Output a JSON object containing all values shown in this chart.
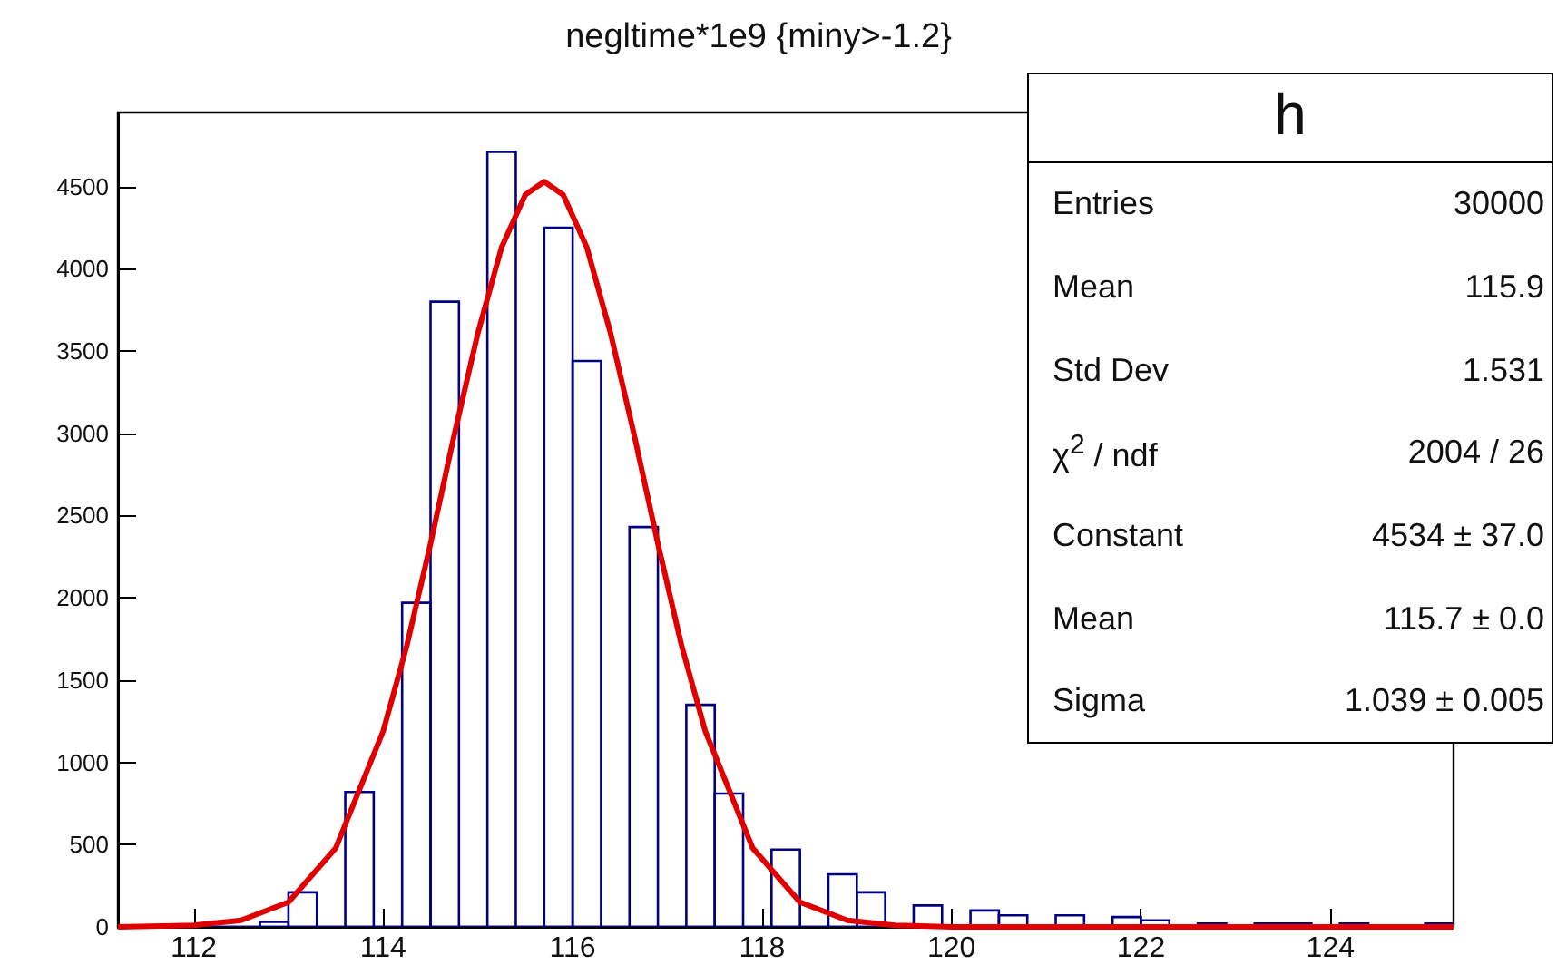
{
  "chart_data": {
    "type": "histogram",
    "title": "negltime*1e9 {miny>-1.2}",
    "bins": [
      111.2,
      111.5,
      111.8,
      112.1,
      112.4,
      112.7,
      113.0,
      113.3,
      113.6,
      113.9,
      114.2,
      114.5,
      114.8,
      115.1,
      115.4,
      115.7,
      116.0,
      116.3,
      116.6,
      116.9,
      117.2,
      117.5,
      117.8,
      118.1,
      118.4,
      118.7,
      119.0,
      119.3,
      119.6,
      119.9,
      120.2,
      120.5,
      120.8,
      121.1,
      121.4,
      121.7,
      122.0,
      122.3,
      122.6,
      122.9,
      123.2,
      123.5,
      123.8,
      124.1,
      124.4,
      124.7,
      125.0,
      125.3
    ],
    "series": [
      {
        "color": "#000080",
        "values": [
          0,
          0,
          0,
          0,
          0,
          30,
          210,
          0,
          820,
          0,
          1970,
          3800,
          0,
          4710,
          0,
          4250,
          3440,
          0,
          2430,
          0,
          1350,
          810,
          0,
          470,
          0,
          320,
          210,
          0,
          130,
          0,
          100,
          70,
          0,
          70,
          0,
          60,
          40,
          0,
          20,
          0,
          20,
          20,
          0,
          20,
          10,
          10,
          20
        ]
      },
      {
        "type": "line",
        "color": "#e00000",
        "x": [
          111.2,
          112,
          112.5,
          113,
          113.5,
          114,
          114.25,
          114.5,
          114.75,
          115,
          115.25,
          115.5,
          115.7,
          115.9,
          116.15,
          116.4,
          116.65,
          116.9,
          117.15,
          117.4,
          117.9,
          118.4,
          118.9,
          119.4,
          120,
          121,
          125.3
        ],
        "values": [
          0,
          10,
          40,
          150,
          480,
          1190,
          1710,
          2330,
          2990,
          3610,
          4130,
          4450,
          4530,
          4450,
          4130,
          3610,
          2990,
          2330,
          1710,
          1190,
          480,
          150,
          40,
          10,
          0,
          0,
          0
        ]
      }
    ],
    "xlim": [
      111.2,
      125.3
    ],
    "xticks": [
      112,
      114,
      116,
      118,
      120,
      122,
      124
    ],
    "ylim": [
      0,
      4950
    ],
    "yticks": [
      0,
      500,
      1000,
      1500,
      2000,
      2500,
      3000,
      3500,
      4000,
      4500
    ],
    "grid": false,
    "marker": "none",
    "line_style": "solid",
    "annotations": [
      "h",
      "Entries",
      "30000",
      "Mean",
      "115.9",
      "Std Dev",
      "1.531",
      "χ$^{2}$ / ndf",
      "2004 / 26",
      "Constant",
      "4534 ± 37.0",
      "Mean",
      "115.7 ± 0.0",
      "Sigma",
      "1.039 ± 0.005"
    ]
  }
}
